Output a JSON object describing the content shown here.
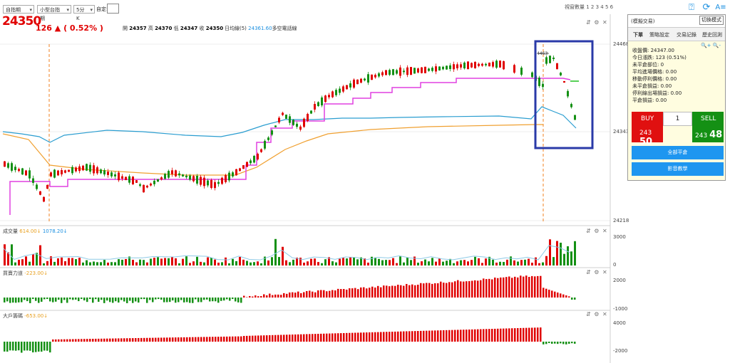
{
  "toolbar": {
    "select1": "自指期",
    "select2": "小型台指期",
    "select3": "5分K",
    "date_label": "自定:",
    "visible_count": "視窗數量 1 2 3 4 5 6"
  },
  "header": {
    "last_price": "24350",
    "change": "126 ▲ ( 0.52% )",
    "ohlc": [
      {
        "label": "開",
        "value": "24357"
      },
      {
        "label": "高",
        "value": "24370"
      },
      {
        "label": "低",
        "value": "24347"
      },
      {
        "label": "收",
        "value": "24350"
      }
    ],
    "ma_label": "日均線(5)",
    "ma_value": "24361.60",
    "ma_suffix": "多空電話線"
  },
  "price_axis": {
    "top": "24468",
    "mid": "24343",
    "bottom": "24218"
  },
  "panels": {
    "volume": {
      "title": "成交量",
      "v1": "614.00↓",
      "v2": "1078.20↓",
      "axis_top": "3000",
      "axis_bottom": "0"
    },
    "buy_power": {
      "title": "買賣力道",
      "v1": "-223.00↓",
      "axis_top": "2000",
      "axis_bottom": "-1000"
    },
    "big_players": {
      "title": "大戶籌碼",
      "v1": "-653.00↓",
      "axis_top": "4000",
      "axis_bottom": "-2000"
    }
  },
  "trade_panel": {
    "title": "(模擬交易)",
    "switch_label": "切換模式",
    "tabs": [
      "下單",
      "策略設定",
      "交易記錄",
      "歷史回測"
    ],
    "info": [
      "收盤價: 24347.00",
      "今日漲跌: 123 (0.51%)",
      "未平倉部位: 0",
      "平均進場價格: 0.00",
      "移動停利價格: 0.00",
      "未平倉損益: 0.00",
      "停利線出場損益: 0.00",
      "平倉損益: 0.00"
    ],
    "buy_label": "BUY",
    "buy_price_prefix": "243",
    "buy_price_main": "50",
    "qty": "1",
    "sell_label": "SELL",
    "sell_price_prefix": "243",
    "sell_price_main": "48",
    "close_all": "全部平倉",
    "video": "影音教學"
  },
  "annotation_label": "4463",
  "colors": {
    "up": "#e00000",
    "down": "#149014",
    "magenta": "#e040e0",
    "cyan": "#2a9dd0",
    "orange": "#f0a030",
    "box": "#2a3aa8"
  }
}
